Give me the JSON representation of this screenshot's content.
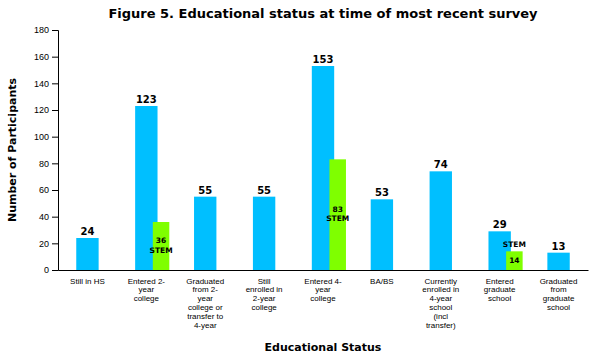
{
  "chart_data": {
    "type": "bar",
    "title": "Figure 5. Educational status at time of most recent survey",
    "xlabel": "Educational Status",
    "ylabel": "Number of Participants",
    "categories": [
      "Still in HS",
      "Entered 2-\nyear\ncollege",
      "Graduated\nfrom 2-\nyear\ncollege or\ntransfer to\n4-year",
      "Still\nenrolled in\n2-year\ncollege",
      "Entered 4-\nyear\ncollege",
      "BA/BS",
      "Currently\nenrolled in\n4-year\nschool\n(incl\ntransfer)",
      "Entered\ngraduate\nschool",
      "Graduated\nfrom\ngraduate\nschool"
    ],
    "series": [
      {
        "values": [
          24,
          123,
          55,
          55,
          153,
          53,
          74,
          29,
          13
        ],
        "color": "#00BFFF"
      },
      {
        "name": "STEM",
        "values": [
          null,
          36,
          null,
          null,
          83,
          null,
          null,
          14,
          null
        ],
        "color": "#7FFF00"
      }
    ],
    "ylim": [
      0,
      180
    ],
    "yticks": [
      0,
      20,
      40,
      60,
      80,
      100,
      120,
      140,
      160,
      180
    ],
    "grid": false,
    "data_labels": true
  }
}
